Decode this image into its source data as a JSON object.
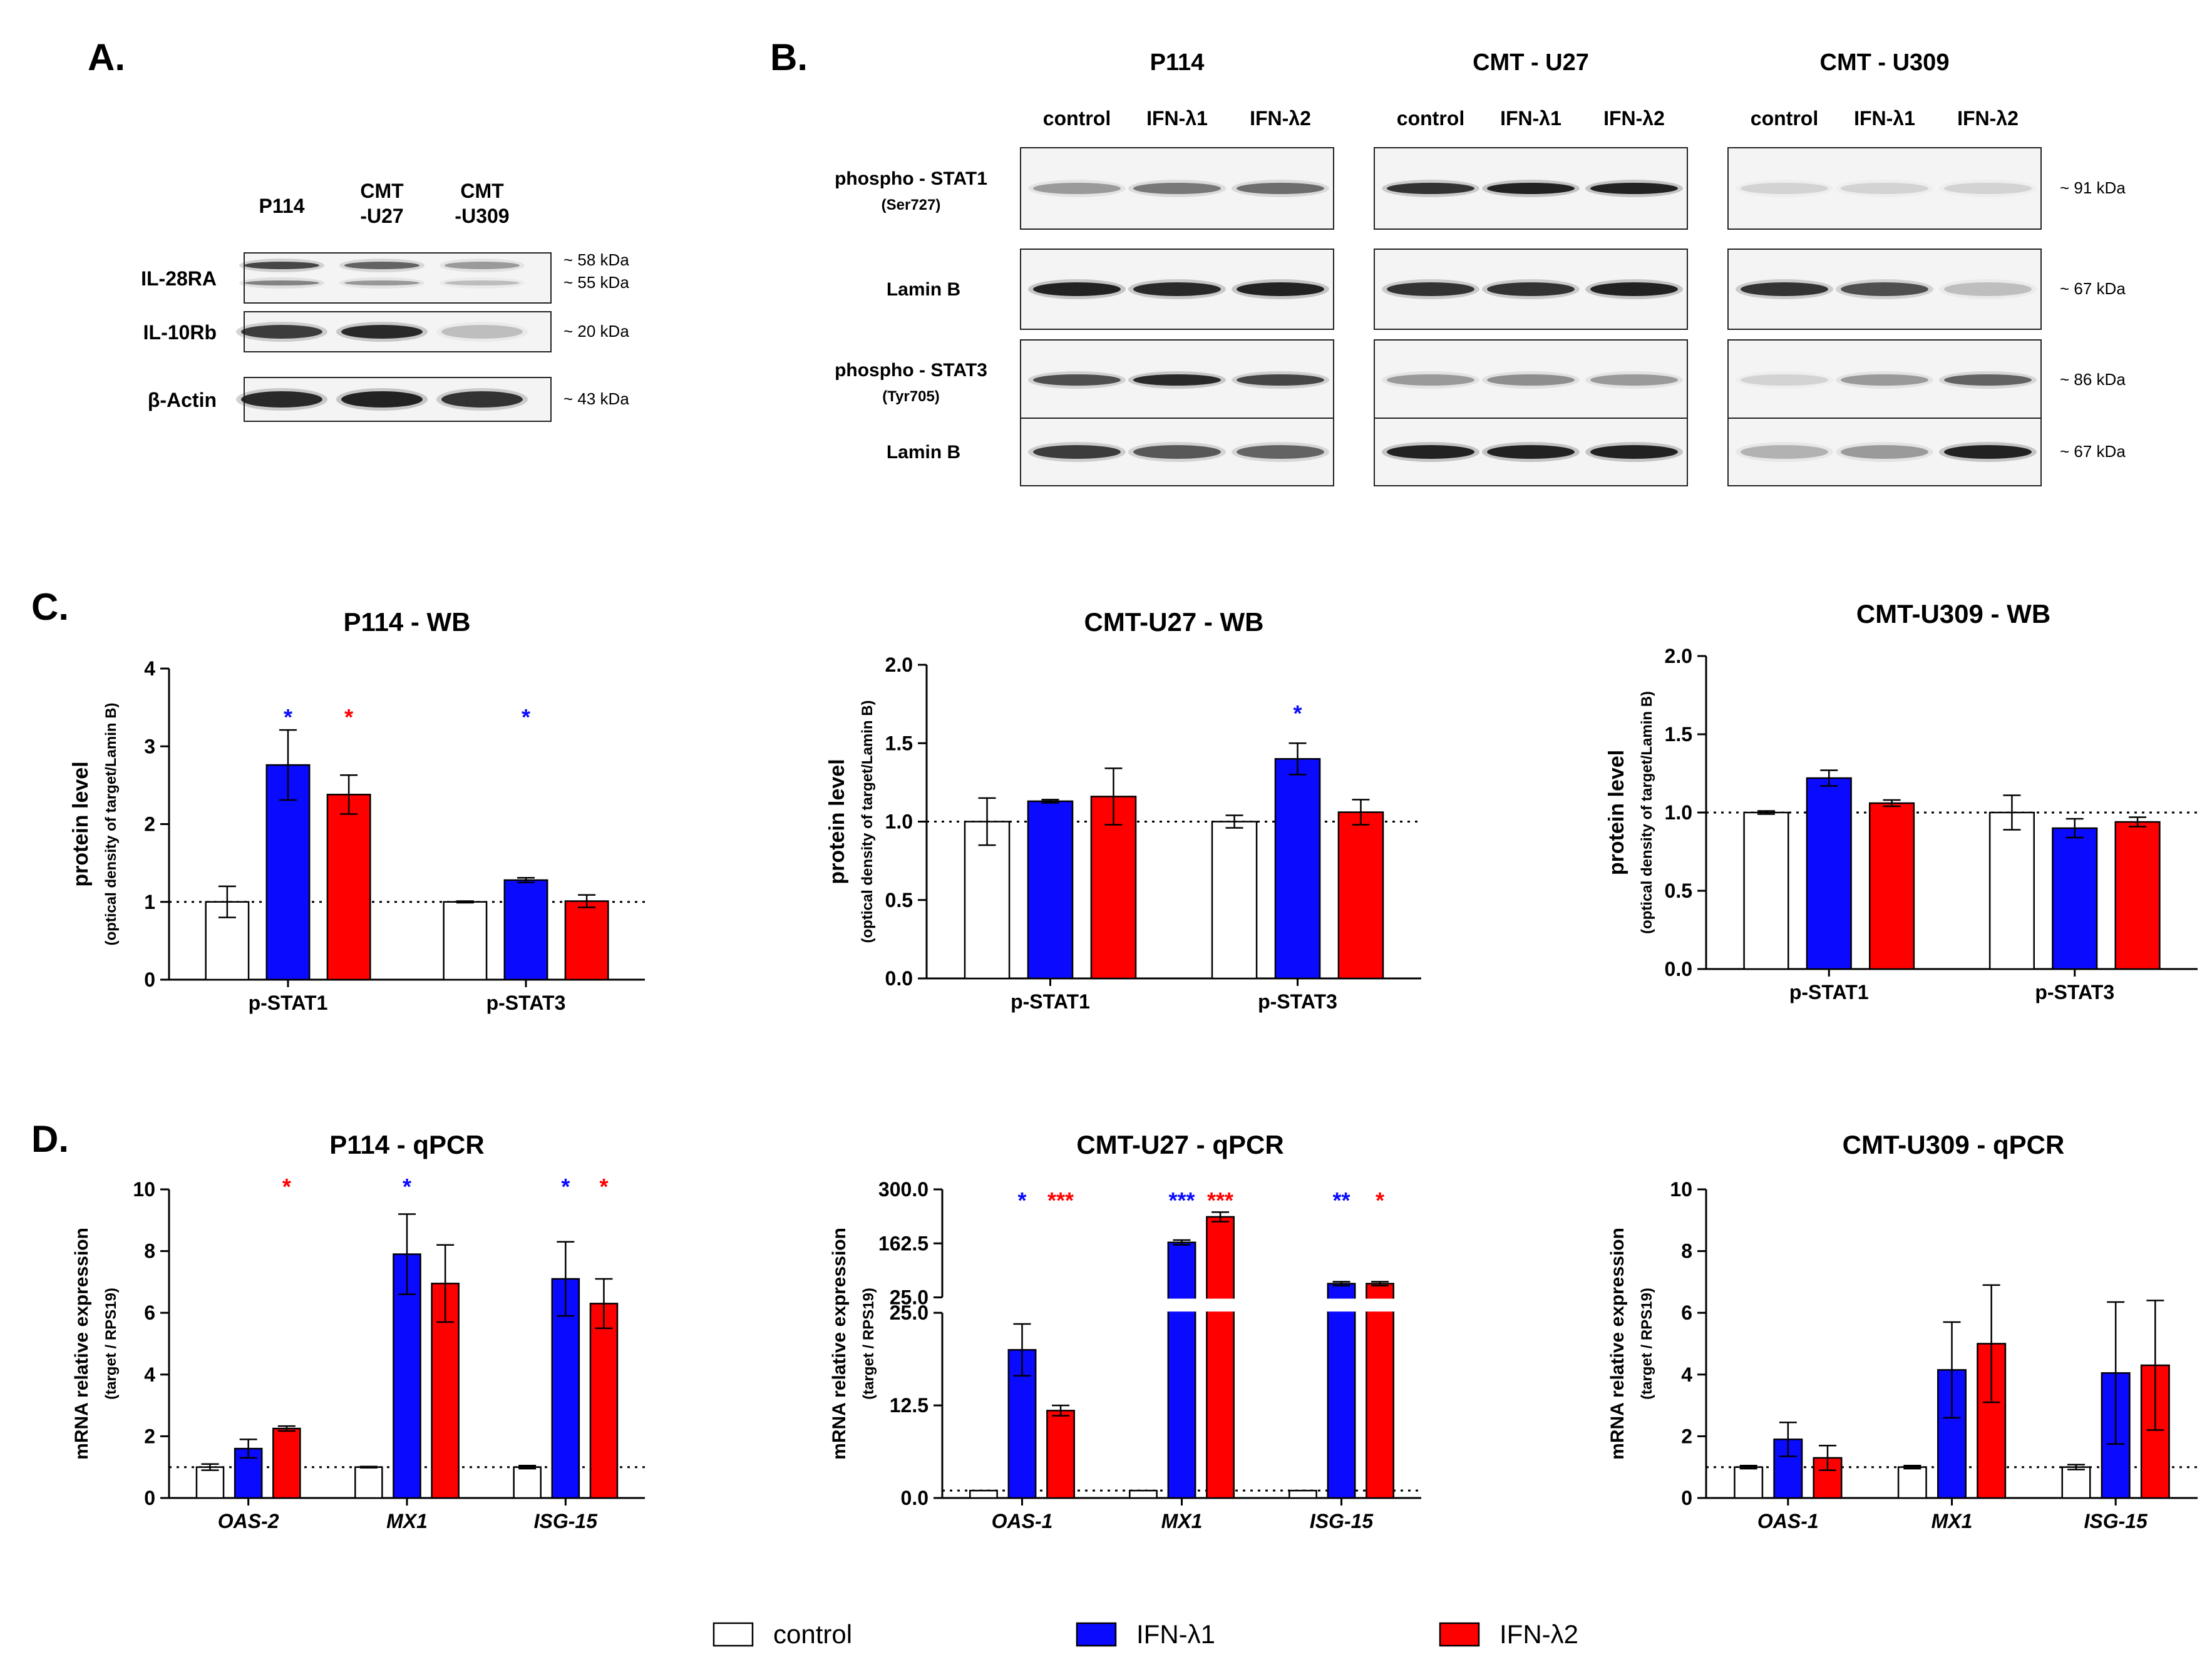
{
  "figure": {
    "colors": {
      "control": "#ffffff",
      "ifn1": "#0a0aff",
      "ifn2": "#ff0000",
      "outline": "#000000"
    },
    "legend": [
      {
        "key": "control",
        "label": "control"
      },
      {
        "key": "ifn1",
        "label": "IFN-λ1"
      },
      {
        "key": "ifn2",
        "label": "IFN-λ2"
      }
    ]
  },
  "panel_a": {
    "label": "A.",
    "columns": [
      "P114",
      "CMT\n-U27",
      "CMT\n-U309"
    ],
    "rows": [
      {
        "name": "IL-28RA",
        "kda": [
          "~ 58 kDa",
          "~ 55 kDa"
        ]
      },
      {
        "name": "IL-10Rb",
        "kda": [
          "~ 20 kDa"
        ]
      },
      {
        "name": "β-Actin",
        "kda": [
          "~ 43 kDa"
        ]
      }
    ]
  },
  "panel_b": {
    "label": "B.",
    "groups": [
      {
        "title": "P114",
        "lanes": [
          "control",
          "IFN-λ1",
          "IFN-λ2"
        ]
      },
      {
        "title": "CMT - U27",
        "lanes": [
          "control",
          "IFN-λ1",
          "IFN-λ2"
        ]
      },
      {
        "title": "CMT - U309",
        "lanes": [
          "control",
          "IFN-λ1",
          "IFN-λ2"
        ]
      }
    ],
    "rows": [
      {
        "name": "phospho - STAT1",
        "sub": "(Ser727)",
        "kda": "~ 91 kDa"
      },
      {
        "name": "Lamin B",
        "sub": "",
        "kda": "~ 67 kDa"
      },
      {
        "name": "phospho - STAT3",
        "sub": "(Tyr705)",
        "kda": "~ 86 kDa"
      },
      {
        "name": "Lamin B",
        "sub": "",
        "kda": "~ 67 kDa"
      }
    ]
  },
  "chart_data": [
    {
      "panel": "C.",
      "type": "bar",
      "title": "P114 - WB",
      "ylabel": "protein level",
      "ylabel_sub": "(optical density of target/Lamin B)",
      "categories": [
        "p-STAT1",
        "p-STAT3"
      ],
      "ylim": [
        0,
        4
      ],
      "yticks": [
        "0",
        "1",
        "2",
        "3",
        "4"
      ],
      "reference_line": 1,
      "series": [
        {
          "name": "control",
          "values": [
            1.0,
            1.0
          ],
          "errors": [
            0.2,
            0.01
          ],
          "stars": [
            "",
            ""
          ]
        },
        {
          "name": "IFN-λ1",
          "values": [
            2.76,
            1.28
          ],
          "errors": [
            0.45,
            0.03
          ],
          "stars": [
            "*",
            "*"
          ]
        },
        {
          "name": "IFN-λ2",
          "values": [
            2.38,
            1.01
          ],
          "errors": [
            0.25,
            0.08
          ],
          "stars": [
            "*",
            ""
          ]
        }
      ]
    },
    {
      "panel": "",
      "type": "bar",
      "title": "CMT-U27 - WB",
      "ylabel": "protein level",
      "ylabel_sub": "(optical density of target/Lamin B)",
      "categories": [
        "p-STAT1",
        "p-STAT3"
      ],
      "ylim": [
        0,
        2
      ],
      "yticks": [
        "0.0",
        "0.5",
        "1.0",
        "1.5",
        "2.0"
      ],
      "reference_line": 1,
      "series": [
        {
          "name": "control",
          "values": [
            1.0,
            1.0
          ],
          "errors": [
            0.15,
            0.04
          ],
          "stars": [
            "",
            ""
          ]
        },
        {
          "name": "IFN-λ1",
          "values": [
            1.13,
            1.4
          ],
          "errors": [
            0.01,
            0.1
          ],
          "stars": [
            "",
            "*"
          ]
        },
        {
          "name": "IFN-λ2",
          "values": [
            1.16,
            1.06
          ],
          "errors": [
            0.18,
            0.08
          ],
          "stars": [
            "",
            ""
          ]
        }
      ]
    },
    {
      "panel": "",
      "type": "bar",
      "title": "CMT-U309 - WB",
      "ylabel": "protein level",
      "ylabel_sub": "(optical density of target/Lamin B)",
      "categories": [
        "p-STAT1",
        "p-STAT3"
      ],
      "ylim": [
        0,
        2
      ],
      "yticks": [
        "0.0",
        "0.5",
        "1.0",
        "1.5",
        "2.0"
      ],
      "reference_line": 1,
      "series": [
        {
          "name": "control",
          "values": [
            1.0,
            1.0
          ],
          "errors": [
            0.01,
            0.11
          ],
          "stars": [
            "",
            ""
          ]
        },
        {
          "name": "IFN-λ1",
          "values": [
            1.22,
            0.9
          ],
          "errors": [
            0.05,
            0.06
          ],
          "stars": [
            "",
            ""
          ]
        },
        {
          "name": "IFN-λ2",
          "values": [
            1.06,
            0.94
          ],
          "errors": [
            0.02,
            0.03
          ],
          "stars": [
            "",
            ""
          ]
        }
      ]
    },
    {
      "panel": "D.",
      "type": "bar",
      "title": "P114 - qPCR",
      "ylabel": "mRNA relative expression",
      "ylabel_sub": "(target / RPS19)",
      "categories": [
        "OAS-2",
        "MX1",
        "ISG-15"
      ],
      "ylim": [
        0,
        10
      ],
      "yticks": [
        "0",
        "2",
        "4",
        "6",
        "8",
        "10"
      ],
      "reference_line": 1,
      "series": [
        {
          "name": "control",
          "values": [
            1.0,
            1.0,
            1.0
          ],
          "errors": [
            0.1,
            0.02,
            0.05
          ],
          "stars": [
            "",
            "",
            ""
          ]
        },
        {
          "name": "IFN-λ1",
          "values": [
            1.6,
            7.9,
            7.1
          ],
          "errors": [
            0.3,
            1.3,
            1.2
          ],
          "stars": [
            "",
            "*",
            "*"
          ]
        },
        {
          "name": "IFN-λ2",
          "values": [
            2.25,
            6.95,
            6.3
          ],
          "errors": [
            0.08,
            1.25,
            0.8
          ],
          "stars": [
            "*",
            "",
            "*"
          ]
        }
      ]
    },
    {
      "panel": "",
      "type": "bar",
      "title": "CMT-U27 - qPCR",
      "ylabel": "mRNA relative expression",
      "ylabel_sub": "(target / RPS19)",
      "categories": [
        "OAS-1",
        "MX1",
        "ISG-15"
      ],
      "axis_break": {
        "lower_range": [
          0,
          25
        ],
        "upper_range": [
          25,
          300
        ]
      },
      "yticks_lower": [
        "0.0",
        "12.5",
        "25.0"
      ],
      "yticks_upper": [
        "25.0",
        "162.5",
        "300.0"
      ],
      "reference_line": 1,
      "series": [
        {
          "name": "control",
          "values": [
            1.0,
            1.0,
            1.0
          ],
          "errors": [
            0,
            0,
            0
          ],
          "stars": [
            "",
            "",
            ""
          ]
        },
        {
          "name": "IFN-λ1",
          "values": [
            20.0,
            165.0,
            60.0
          ],
          "errors": [
            3.5,
            6.0,
            5.0
          ],
          "stars": [
            "*",
            "***",
            "**"
          ]
        },
        {
          "name": "IFN-λ2",
          "values": [
            11.8,
            230.0,
            60.0
          ],
          "errors": [
            0.7,
            12.0,
            5.0
          ],
          "stars": [
            "***",
            "***",
            "*"
          ]
        }
      ]
    },
    {
      "panel": "",
      "type": "bar",
      "title": "CMT-U309 - qPCR",
      "ylabel": "mRNA relative expression",
      "ylabel_sub": "(target / RPS19)",
      "categories": [
        "OAS-1",
        "MX1",
        "ISG-15"
      ],
      "ylim": [
        0,
        10
      ],
      "yticks": [
        "0",
        "2",
        "4",
        "6",
        "8",
        "10"
      ],
      "reference_line": 1,
      "series": [
        {
          "name": "control",
          "values": [
            1.0,
            1.0,
            1.0
          ],
          "errors": [
            0.05,
            0.05,
            0.08
          ],
          "stars": [
            "",
            "",
            ""
          ]
        },
        {
          "name": "IFN-λ1",
          "values": [
            1.9,
            4.15,
            4.05
          ],
          "errors": [
            0.55,
            1.55,
            2.3
          ],
          "stars": [
            "",
            "",
            ""
          ]
        },
        {
          "name": "IFN-λ2",
          "values": [
            1.3,
            5.0,
            4.3
          ],
          "errors": [
            0.4,
            1.9,
            2.1
          ],
          "stars": [
            "",
            "",
            ""
          ]
        }
      ]
    }
  ]
}
